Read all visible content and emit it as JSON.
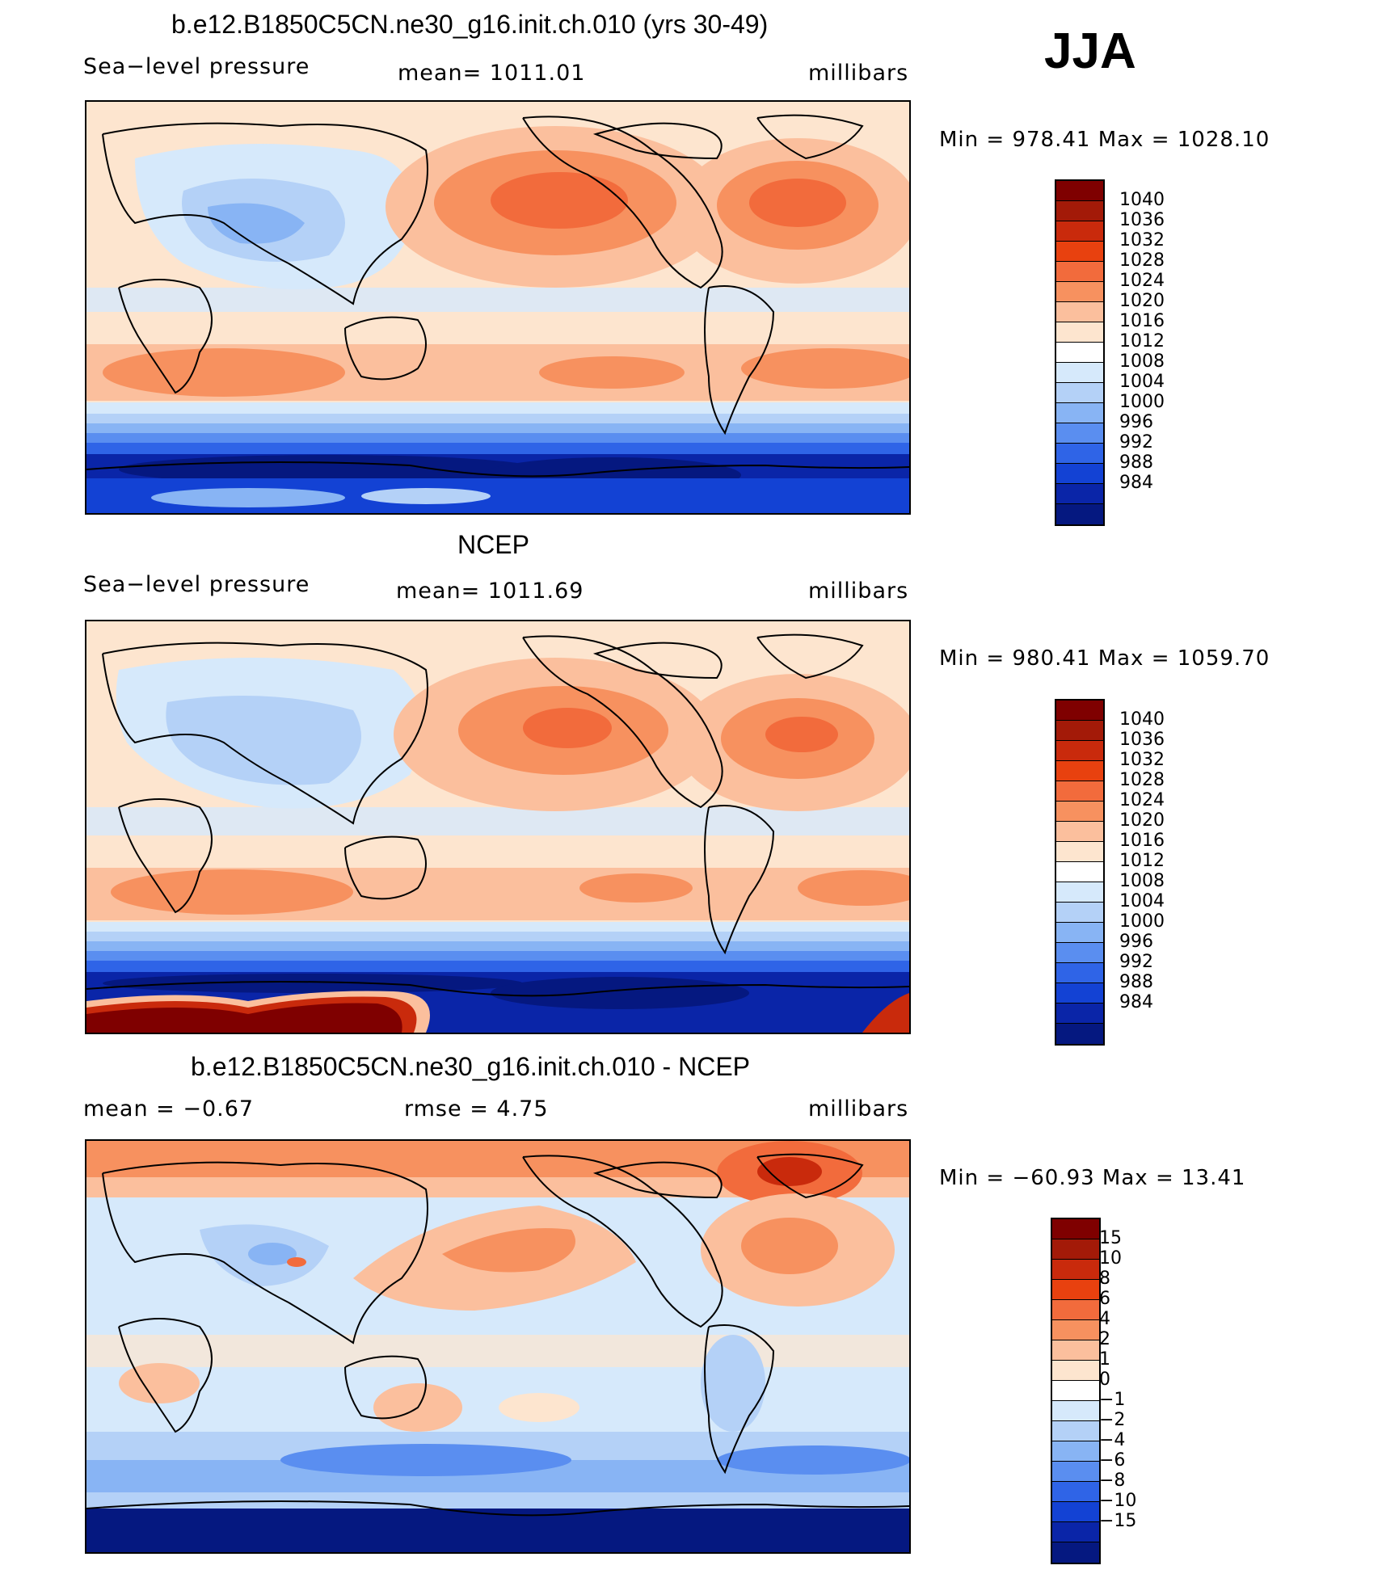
{
  "season": "JJA",
  "panels": [
    {
      "title": "b.e12.B1850C5CN.ne30_g16.init.ch.010 (yrs 30-49)",
      "left": "Sea−level pressure",
      "center": "mean=  1011.01",
      "right": "millibars",
      "minmax": "Min  =  978.41  Max  =  1028.10"
    },
    {
      "title": "NCEP",
      "left": "Sea−level pressure",
      "center": "mean=  1011.69",
      "right": "millibars",
      "minmax": "Min  =  980.41  Max  =  1059.70"
    },
    {
      "title": "b.e12.B1850C5CN.ne30_g16.init.ch.010 - NCEP",
      "left": "mean  =    −0.67",
      "center": "rmse  =     4.75",
      "right": "millibars",
      "minmax": "Min  =  −60.93  Max  =    13.41"
    }
  ],
  "colorbars": {
    "pressure": {
      "labels": [
        "1040",
        "1036",
        "1032",
        "1028",
        "1024",
        "1020",
        "1016",
        "1012",
        "1008",
        "1004",
        "1000",
        "996",
        "992",
        "988",
        "984"
      ],
      "colors": [
        "#7f0000",
        "#a31a08",
        "#c92a0c",
        "#e8410f",
        "#f26b3c",
        "#f7915f",
        "#fbbf9d",
        "#fde5cf",
        "#ffffff",
        "#d6e9fb",
        "#b4d1f7",
        "#88b4f4",
        "#5a8ef0",
        "#2f64e7",
        "#1342d4",
        "#0a25a8",
        "#051880"
      ]
    },
    "difference": {
      "labels": [
        "15",
        "10",
        "8",
        "6",
        "4",
        "2",
        "1",
        "0",
        "−1",
        "−2",
        "−4",
        "−6",
        "−8",
        "−10",
        "−15"
      ],
      "colors": [
        "#7f0000",
        "#a31a08",
        "#c92a0c",
        "#e8410f",
        "#f26b3c",
        "#f7915f",
        "#fbbf9d",
        "#fde5cf",
        "#ffffff",
        "#d6e9fb",
        "#b4d1f7",
        "#88b4f4",
        "#5a8ef0",
        "#2f64e7",
        "#1342d4",
        "#0a25a8",
        "#051880"
      ]
    }
  }
}
